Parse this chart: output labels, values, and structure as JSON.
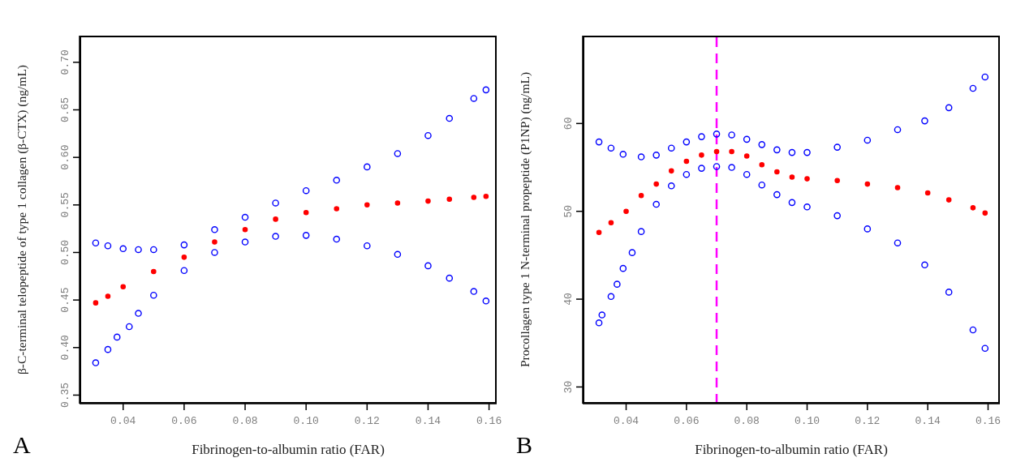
{
  "chart_data": [
    {
      "type": "scatter",
      "xlabel": "Fibrinogen-to-albumin ratio (FAR)",
      "ylabel": "β-C-terminal telopeptide of type 1 collagen (β-CTX) (ng/mL)",
      "annotations": [
        "A"
      ],
      "marker": "circle",
      "xlim": [
        0.0257,
        0.1625
      ],
      "ylim": [
        0.341,
        0.728
      ],
      "xticks": [
        {
          "value": 0.04,
          "label": "0.04"
        },
        {
          "value": 0.06,
          "label": "0.06"
        },
        {
          "value": 0.08,
          "label": "0.08"
        },
        {
          "value": 0.1,
          "label": "0.10"
        },
        {
          "value": 0.12,
          "label": "0.12"
        },
        {
          "value": 0.14,
          "label": "0.14"
        },
        {
          "value": 0.16,
          "label": "0.16"
        }
      ],
      "yticks": [
        {
          "value": 0.35,
          "label": "0.35"
        },
        {
          "value": 0.4,
          "label": "0.40"
        },
        {
          "value": 0.45,
          "label": "0.45"
        },
        {
          "value": 0.5,
          "label": "0.50"
        },
        {
          "value": 0.55,
          "label": "0.55"
        },
        {
          "value": 0.6,
          "label": "0.60"
        },
        {
          "value": 0.65,
          "label": "0.65"
        },
        {
          "value": 0.7,
          "label": "0.70"
        }
      ],
      "series": [
        {
          "color": "#0000ff",
          "x": [
            0.031,
            0.035,
            0.04,
            0.045,
            0.05,
            0.06,
            0.07,
            0.08,
            0.09,
            0.1,
            0.11,
            0.12,
            0.13,
            0.14,
            0.147,
            0.155,
            0.159
          ],
          "values": [
            0.51,
            0.507,
            0.504,
            0.503,
            0.503,
            0.508,
            0.524,
            0.537,
            0.552,
            0.565,
            0.576,
            0.59,
            0.604,
            0.623,
            0.641,
            0.662,
            0.671
          ]
        },
        {
          "color": "#ff0000",
          "x": [
            0.031,
            0.035,
            0.04,
            0.05,
            0.06,
            0.07,
            0.08,
            0.09,
            0.1,
            0.11,
            0.12,
            0.13,
            0.14,
            0.147,
            0.155,
            0.159
          ],
          "values": [
            0.447,
            0.454,
            0.464,
            0.48,
            0.495,
            0.511,
            0.524,
            0.535,
            0.542,
            0.546,
            0.55,
            0.552,
            0.554,
            0.556,
            0.558,
            0.559
          ]
        },
        {
          "color": "#0000ff",
          "x": [
            0.031,
            0.035,
            0.038,
            0.042,
            0.045,
            0.05,
            0.06,
            0.07,
            0.08,
            0.09,
            0.1,
            0.11,
            0.12,
            0.13,
            0.14,
            0.147,
            0.155,
            0.159
          ],
          "values": [
            0.384,
            0.398,
            0.411,
            0.422,
            0.436,
            0.455,
            0.481,
            0.5,
            0.511,
            0.517,
            0.518,
            0.514,
            0.507,
            0.498,
            0.486,
            0.473,
            0.459,
            0.449
          ]
        }
      ]
    },
    {
      "type": "scatter",
      "xlabel": "Fibrinogen-to-albumin ratio (FAR)",
      "ylabel": "Procollagen type 1 N-terminal propeptide (P1NP) (ng/mL)",
      "annotations": [
        "B"
      ],
      "marker": "circle",
      "xlim": [
        0.0256,
        0.1639
      ],
      "ylim": [
        28.1,
        70
      ],
      "xticks": [
        {
          "value": 0.04,
          "label": "0.04"
        },
        {
          "value": 0.06,
          "label": "0.06"
        },
        {
          "value": 0.08,
          "label": "0.08"
        },
        {
          "value": 0.1,
          "label": "0.10"
        },
        {
          "value": 0.12,
          "label": "0.12"
        },
        {
          "value": 0.14,
          "label": "0.14"
        },
        {
          "value": 0.16,
          "label": "0.16"
        }
      ],
      "yticks": [
        30,
        40,
        50,
        60
      ],
      "ref_lines": [
        {
          "axis": "x",
          "value": 0.07,
          "color": "#ff00ff",
          "line_style": "dashed"
        }
      ],
      "series": [
        {
          "color": "#0000ff",
          "x": [
            0.031,
            0.035,
            0.039,
            0.045,
            0.05,
            0.055,
            0.06,
            0.065,
            0.07,
            0.075,
            0.08,
            0.085,
            0.09,
            0.095,
            0.1,
            0.11,
            0.12,
            0.13,
            0.139,
            0.147,
            0.155,
            0.159
          ],
          "values": [
            57.9,
            57.2,
            56.5,
            56.2,
            56.4,
            57.2,
            57.9,
            58.5,
            58.8,
            58.7,
            58.2,
            57.6,
            57,
            56.7,
            56.7,
            57.3,
            58.1,
            59.3,
            60.3,
            61.8,
            64,
            65.3
          ]
        },
        {
          "color": "#ff0000",
          "x": [
            0.031,
            0.035,
            0.04,
            0.045,
            0.05,
            0.055,
            0.06,
            0.065,
            0.07,
            0.075,
            0.08,
            0.085,
            0.09,
            0.095,
            0.1,
            0.11,
            0.12,
            0.13,
            0.14,
            0.147,
            0.155,
            0.159
          ],
          "values": [
            47.6,
            48.7,
            50,
            51.8,
            53.1,
            54.6,
            55.7,
            56.4,
            56.8,
            56.8,
            56.3,
            55.3,
            54.5,
            53.9,
            53.7,
            53.5,
            53.1,
            52.7,
            52.1,
            51.3,
            50.4,
            49.8
          ]
        },
        {
          "color": "#0000ff",
          "x": [
            0.031,
            0.032,
            0.035,
            0.037,
            0.039,
            0.042,
            0.045,
            0.05,
            0.055,
            0.06,
            0.065,
            0.07,
            0.075,
            0.08,
            0.085,
            0.09,
            0.095,
            0.1,
            0.11,
            0.12,
            0.13,
            0.139,
            0.147,
            0.155,
            0.159
          ],
          "values": [
            37.3,
            38.2,
            40.3,
            41.7,
            43.5,
            45.3,
            47.7,
            50.8,
            52.9,
            54.2,
            54.9,
            55.1,
            55,
            54.2,
            53,
            51.9,
            51,
            50.5,
            49.5,
            48,
            46.4,
            43.9,
            40.8,
            36.5,
            34.4
          ]
        }
      ]
    }
  ]
}
